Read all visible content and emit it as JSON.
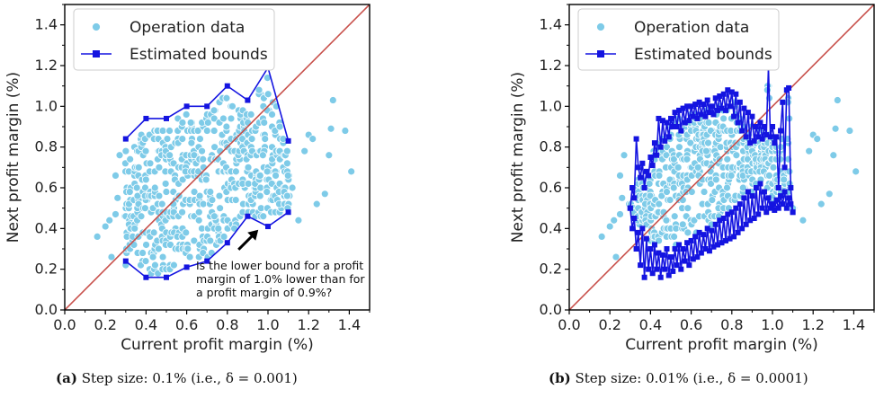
{
  "captions": [
    {
      "tag": "(a)",
      "text": "Step size: 0.1% (i.e., δ = 0.001)"
    },
    {
      "tag": "(b)",
      "text": "Step size: 0.01% (i.e., δ = 0.0001)"
    }
  ],
  "colors": {
    "scatter": "#7ecbe8",
    "bounds": "#1414e0",
    "diagonal": "#c8504b",
    "axis": "#000000"
  },
  "chart_data": [
    {
      "type": "scatter",
      "xlabel": "Current profit margin (%)",
      "ylabel": "Next profit margin (%)",
      "xlim": [
        0.0,
        1.5
      ],
      "ylim": [
        0.0,
        1.5
      ],
      "xticks": [
        "0.0",
        "0.2",
        "0.4",
        "0.6",
        "0.8",
        "1.0",
        "1.2",
        "1.4"
      ],
      "yticks": [
        "0.0",
        "0.2",
        "0.4",
        "0.6",
        "0.8",
        "1.0",
        "1.2",
        "1.4"
      ],
      "legend": {
        "position": "top-left",
        "entries": [
          "Operation data",
          "Estimated bounds"
        ]
      },
      "diagonal": true,
      "annotation": {
        "lines": [
          "Is the lower bound for a profit",
          "margin of 1.0% lower than for",
          "a profit margin of 0.9%?"
        ],
        "arrow_to": [
          0.97,
          0.42
        ]
      },
      "series": [
        {
          "name": "Operation data",
          "kind": "scatter",
          "outliers": [
            [
              0.16,
              0.36
            ],
            [
              0.2,
              0.41
            ],
            [
              0.22,
              0.44
            ],
            [
              0.25,
              0.47
            ],
            [
              0.26,
              0.55
            ],
            [
              0.25,
              0.66
            ],
            [
              0.27,
              0.76
            ],
            [
              0.23,
              0.26
            ],
            [
              0.3,
              0.22
            ],
            [
              1.2,
              0.86
            ],
            [
              1.22,
              0.84
            ],
            [
              1.24,
              0.52
            ],
            [
              1.28,
              0.57
            ],
            [
              1.3,
              0.76
            ],
            [
              1.31,
              0.89
            ],
            [
              1.32,
              1.03
            ],
            [
              1.38,
              0.88
            ],
            [
              1.41,
              0.68
            ],
            [
              1.18,
              0.78
            ],
            [
              1.12,
              0.6
            ],
            [
              1.15,
              0.44
            ],
            [
              1.02,
              0.96
            ]
          ]
        },
        {
          "name": "Estimated bounds",
          "kind": "line",
          "upper": [
            [
              0.3,
              0.84
            ],
            [
              0.4,
              0.94
            ],
            [
              0.5,
              0.94
            ],
            [
              0.6,
              1.0
            ],
            [
              0.7,
              1.0
            ],
            [
              0.8,
              1.1
            ],
            [
              0.9,
              1.03
            ],
            [
              1.0,
              1.19
            ],
            [
              1.1,
              0.83
            ]
          ],
          "lower": [
            [
              0.3,
              0.24
            ],
            [
              0.4,
              0.16
            ],
            [
              0.5,
              0.16
            ],
            [
              0.6,
              0.21
            ],
            [
              0.7,
              0.24
            ],
            [
              0.8,
              0.33
            ],
            [
              0.9,
              0.46
            ],
            [
              1.0,
              0.41
            ],
            [
              1.1,
              0.48
            ]
          ]
        }
      ]
    },
    {
      "type": "scatter",
      "xlabel": "Current profit margin (%)",
      "ylabel": "Next profit margin (%)",
      "xlim": [
        0.0,
        1.5
      ],
      "ylim": [
        0.0,
        1.5
      ],
      "xticks": [
        "0.0",
        "0.2",
        "0.4",
        "0.6",
        "0.8",
        "1.0",
        "1.2",
        "1.4"
      ],
      "yticks": [
        "0.0",
        "0.2",
        "0.4",
        "0.6",
        "0.8",
        "1.0",
        "1.2",
        "1.4"
      ],
      "legend": {
        "position": "top-left",
        "entries": [
          "Operation data",
          "Estimated bounds"
        ]
      },
      "diagonal": true,
      "series": [
        {
          "name": "Operation data",
          "kind": "scatter",
          "outliers": [
            [
              0.16,
              0.36
            ],
            [
              0.2,
              0.41
            ],
            [
              0.22,
              0.44
            ],
            [
              0.25,
              0.47
            ],
            [
              0.26,
              0.55
            ],
            [
              0.25,
              0.66
            ],
            [
              0.27,
              0.76
            ],
            [
              0.23,
              0.26
            ],
            [
              1.2,
              0.86
            ],
            [
              1.22,
              0.84
            ],
            [
              1.24,
              0.52
            ],
            [
              1.28,
              0.57
            ],
            [
              1.3,
              0.76
            ],
            [
              1.31,
              0.89
            ],
            [
              1.32,
              1.03
            ],
            [
              1.38,
              0.88
            ],
            [
              1.41,
              0.68
            ],
            [
              1.18,
              0.78
            ],
            [
              1.15,
              0.44
            ]
          ]
        },
        {
          "name": "Estimated bounds",
          "kind": "line",
          "upper": [
            [
              0.3,
              0.5
            ],
            [
              0.31,
              0.6
            ],
            [
              0.32,
              0.55
            ],
            [
              0.33,
              0.84
            ],
            [
              0.34,
              0.7
            ],
            [
              0.35,
              0.65
            ],
            [
              0.36,
              0.72
            ],
            [
              0.37,
              0.6
            ],
            [
              0.38,
              0.68
            ],
            [
              0.39,
              0.66
            ],
            [
              0.4,
              0.75
            ],
            [
              0.41,
              0.71
            ],
            [
              0.42,
              0.82
            ],
            [
              0.43,
              0.76
            ],
            [
              0.44,
              0.94
            ],
            [
              0.45,
              0.8
            ],
            [
              0.46,
              0.93
            ],
            [
              0.47,
              0.83
            ],
            [
              0.48,
              0.92
            ],
            [
              0.49,
              0.85
            ],
            [
              0.5,
              0.94
            ],
            [
              0.51,
              0.9
            ],
            [
              0.52,
              0.97
            ],
            [
              0.53,
              0.9
            ],
            [
              0.54,
              0.98
            ],
            [
              0.55,
              0.88
            ],
            [
              0.56,
              0.99
            ],
            [
              0.57,
              0.92
            ],
            [
              0.58,
              1.0
            ],
            [
              0.59,
              0.93
            ],
            [
              0.6,
              1.0
            ],
            [
              0.61,
              0.95
            ],
            [
              0.62,
              1.01
            ],
            [
              0.63,
              0.94
            ],
            [
              0.64,
              1.02
            ],
            [
              0.65,
              0.96
            ],
            [
              0.66,
              1.01
            ],
            [
              0.67,
              0.95
            ],
            [
              0.68,
              1.03
            ],
            [
              0.69,
              0.97
            ],
            [
              0.7,
              1.0
            ],
            [
              0.71,
              0.96
            ],
            [
              0.72,
              1.04
            ],
            [
              0.73,
              0.98
            ],
            [
              0.74,
              1.05
            ],
            [
              0.75,
              0.99
            ],
            [
              0.76,
              1.06
            ],
            [
              0.77,
              0.98
            ],
            [
              0.78,
              1.08
            ],
            [
              0.79,
              1.0
            ],
            [
              0.8,
              1.07
            ],
            [
              0.81,
              0.95
            ],
            [
              0.82,
              1.06
            ],
            [
              0.83,
              0.92
            ],
            [
              0.84,
              1.02
            ],
            [
              0.85,
              0.88
            ],
            [
              0.86,
              0.99
            ],
            [
              0.87,
              0.85
            ],
            [
              0.88,
              0.97
            ],
            [
              0.89,
              0.82
            ],
            [
              0.9,
              0.95
            ],
            [
              0.91,
              0.83
            ],
            [
              0.92,
              0.9
            ],
            [
              0.93,
              0.85
            ],
            [
              0.94,
              0.92
            ],
            [
              0.95,
              0.84
            ],
            [
              0.96,
              0.9
            ],
            [
              0.97,
              0.86
            ],
            [
              0.98,
              1.19
            ],
            [
              0.99,
              0.85
            ],
            [
              1.0,
              0.9
            ],
            [
              1.01,
              0.82
            ],
            [
              1.02,
              0.85
            ],
            [
              1.03,
              0.6
            ],
            [
              1.04,
              0.88
            ],
            [
              1.05,
              1.02
            ],
            [
              1.06,
              0.7
            ],
            [
              1.07,
              1.08
            ],
            [
              1.08,
              1.09
            ],
            [
              1.09,
              0.6
            ],
            [
              1.1,
              0.48
            ]
          ],
          "lower": [
            [
              0.3,
              0.5
            ],
            [
              0.31,
              0.4
            ],
            [
              0.32,
              0.45
            ],
            [
              0.33,
              0.3
            ],
            [
              0.34,
              0.38
            ],
            [
              0.35,
              0.22
            ],
            [
              0.36,
              0.4
            ],
            [
              0.37,
              0.16
            ],
            [
              0.38,
              0.35
            ],
            [
              0.39,
              0.2
            ],
            [
              0.4,
              0.3
            ],
            [
              0.41,
              0.18
            ],
            [
              0.42,
              0.32
            ],
            [
              0.43,
              0.2
            ],
            [
              0.44,
              0.28
            ],
            [
              0.45,
              0.16
            ],
            [
              0.46,
              0.27
            ],
            [
              0.47,
              0.2
            ],
            [
              0.48,
              0.3
            ],
            [
              0.49,
              0.17
            ],
            [
              0.5,
              0.26
            ],
            [
              0.51,
              0.19
            ],
            [
              0.52,
              0.3
            ],
            [
              0.53,
              0.22
            ],
            [
              0.54,
              0.32
            ],
            [
              0.55,
              0.2
            ],
            [
              0.56,
              0.3
            ],
            [
              0.57,
              0.24
            ],
            [
              0.58,
              0.33
            ],
            [
              0.59,
              0.22
            ],
            [
              0.6,
              0.34
            ],
            [
              0.61,
              0.25
            ],
            [
              0.62,
              0.36
            ],
            [
              0.63,
              0.26
            ],
            [
              0.64,
              0.38
            ],
            [
              0.65,
              0.28
            ],
            [
              0.66,
              0.37
            ],
            [
              0.67,
              0.3
            ],
            [
              0.68,
              0.4
            ],
            [
              0.69,
              0.29
            ],
            [
              0.7,
              0.39
            ],
            [
              0.71,
              0.31
            ],
            [
              0.72,
              0.42
            ],
            [
              0.73,
              0.32
            ],
            [
              0.74,
              0.44
            ],
            [
              0.75,
              0.33
            ],
            [
              0.76,
              0.45
            ],
            [
              0.77,
              0.34
            ],
            [
              0.78,
              0.47
            ],
            [
              0.79,
              0.35
            ],
            [
              0.8,
              0.48
            ],
            [
              0.81,
              0.36
            ],
            [
              0.82,
              0.5
            ],
            [
              0.83,
              0.38
            ],
            [
              0.84,
              0.52
            ],
            [
              0.85,
              0.4
            ],
            [
              0.86,
              0.55
            ],
            [
              0.87,
              0.42
            ],
            [
              0.88,
              0.58
            ],
            [
              0.89,
              0.44
            ],
            [
              0.9,
              0.56
            ],
            [
              0.91,
              0.45
            ],
            [
              0.92,
              0.6
            ],
            [
              0.93,
              0.47
            ],
            [
              0.94,
              0.62
            ],
            [
              0.95,
              0.5
            ],
            [
              0.96,
              0.58
            ],
            [
              0.97,
              0.48
            ],
            [
              0.98,
              0.55
            ],
            [
              0.99,
              0.5
            ],
            [
              1.0,
              0.52
            ],
            [
              1.01,
              0.49
            ],
            [
              1.02,
              0.54
            ],
            [
              1.03,
              0.5
            ],
            [
              1.04,
              0.56
            ],
            [
              1.05,
              0.52
            ],
            [
              1.06,
              0.58
            ],
            [
              1.07,
              0.5
            ],
            [
              1.08,
              0.55
            ],
            [
              1.09,
              0.52
            ],
            [
              1.1,
              0.48
            ]
          ]
        }
      ]
    }
  ]
}
